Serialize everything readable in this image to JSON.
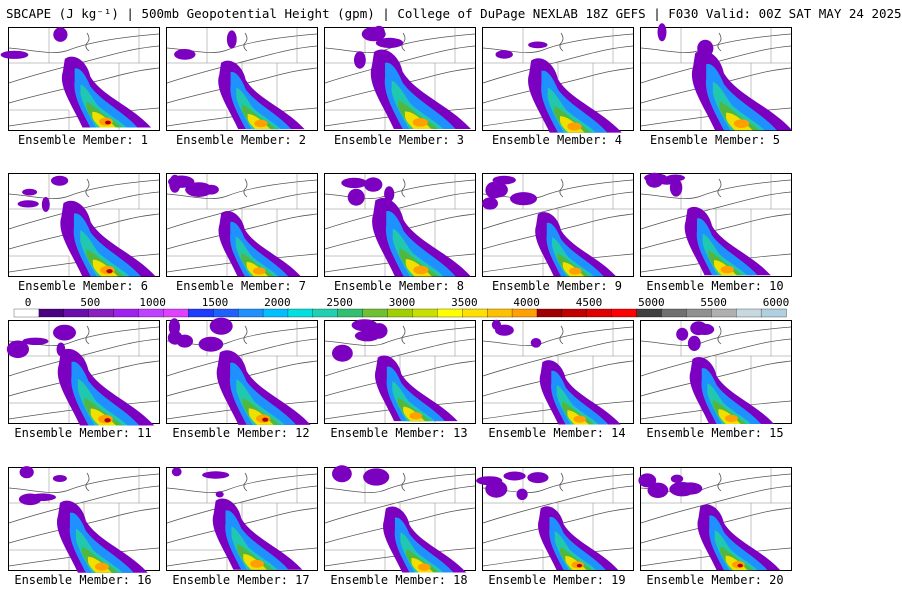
{
  "title": "SBCAPE (J kg⁻¹) | 500mb Geopotential Height (gpm) | College of DuPage NEXLAB 18Z GEFS | F030 Valid: 00Z SAT MAY 24 2025",
  "panels": [
    {
      "label": "Ensemble Member: 1"
    },
    {
      "label": "Ensemble Member: 2"
    },
    {
      "label": "Ensemble Member: 3"
    },
    {
      "label": "Ensemble Member: 4"
    },
    {
      "label": "Ensemble Member: 5"
    },
    {
      "label": "Ensemble Member: 6"
    },
    {
      "label": "Ensemble Member: 7"
    },
    {
      "label": "Ensemble Member: 8"
    },
    {
      "label": "Ensemble Member: 9"
    },
    {
      "label": "Ensemble Member: 10"
    },
    {
      "label": "Ensemble Member: 11"
    },
    {
      "label": "Ensemble Member: 12"
    },
    {
      "label": "Ensemble Member: 13"
    },
    {
      "label": "Ensemble Member: 14"
    },
    {
      "label": "Ensemble Member: 15"
    },
    {
      "label": "Ensemble Member: 16"
    },
    {
      "label": "Ensemble Member: 17"
    },
    {
      "label": "Ensemble Member: 18"
    },
    {
      "label": "Ensemble Member: 19"
    },
    {
      "label": "Ensemble Member: 20"
    }
  ],
  "colorbar": {
    "min": 0,
    "max": 6000,
    "tick_labels": [
      "0",
      "500",
      "1000",
      "1500",
      "2000",
      "2500",
      "3000",
      "3500",
      "4000",
      "4500",
      "5000",
      "5500",
      "6000"
    ],
    "colors": [
      "#ffffff",
      "#4b0082",
      "#6a0dad",
      "#8b1fbf",
      "#a020f0",
      "#c040ff",
      "#e040ff",
      "#1e3cff",
      "#2060ff",
      "#1e90ff",
      "#00bfff",
      "#00e0e0",
      "#20d0b0",
      "#30c070",
      "#70c030",
      "#a0d000",
      "#c8e000",
      "#ffff00",
      "#ffe000",
      "#ffc000",
      "#ffa000",
      "#a00000",
      "#c00000",
      "#e00000",
      "#ff0000",
      "#404040",
      "#707070",
      "#909090",
      "#b0b0b0",
      "#c8d8e0",
      "#b0d0e0"
    ]
  },
  "colors": {
    "cape_outer": "#7b00c0",
    "cape_mid": "#1e90ff",
    "cape_inner": "#20c8b0",
    "cape_green": "#50b840",
    "cape_yellow": "#f0e000",
    "cape_orange": "#ffa000",
    "cape_red": "#b00000",
    "borders": "#555555"
  }
}
